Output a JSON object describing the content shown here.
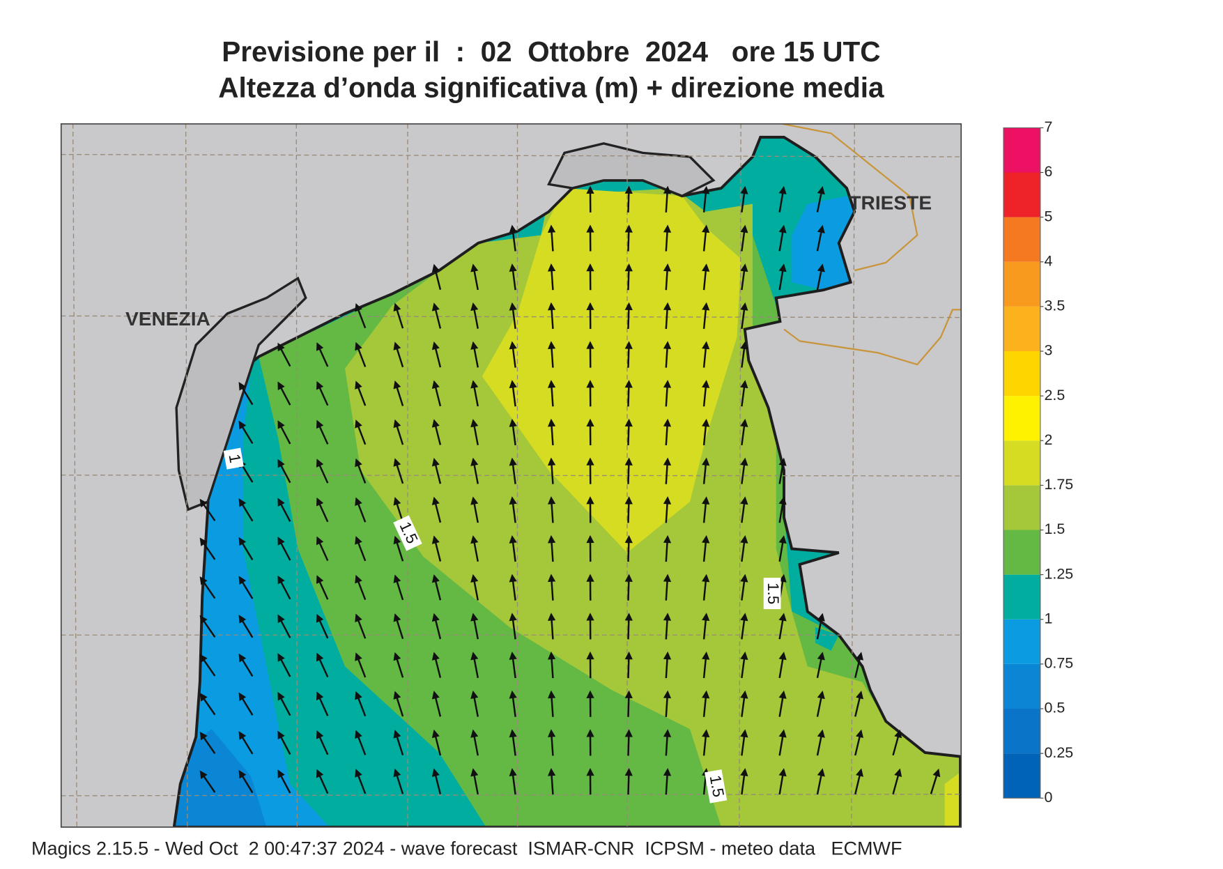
{
  "title": {
    "line1": "Previsione per il  :  02  Ottobre  2024   ore 15 UTC",
    "line2": "Altezza d’onda significativa (m) + direzione media"
  },
  "map": {
    "places": [
      "VENEZIA",
      "TRIESTE"
    ],
    "contour_labels": [
      "1",
      "1.5",
      "1.5",
      "1.5"
    ]
  },
  "colorbar": {
    "ticks": [
      0,
      0.25,
      0.5,
      0.75,
      1,
      1.25,
      1.5,
      1.75,
      2,
      2.5,
      3,
      3.5,
      4,
      5,
      6,
      7
    ],
    "colors": [
      "#0063b8",
      "#0a75c8",
      "#0b86d4",
      "#0a9be0",
      "#00ad9f",
      "#63b944",
      "#a4c83a",
      "#d6dc22",
      "#fff200",
      "#ffd500",
      "#fbb21d",
      "#f79a1d",
      "#f47920",
      "#ee2229",
      "#ec1163"
    ]
  },
  "footer": "Magics 2.15.5 - Wed Oct  2 00:47:37 2024 - wave forecast  ISMAR-CNR  ICPSM - meteo data   ECMWF"
}
